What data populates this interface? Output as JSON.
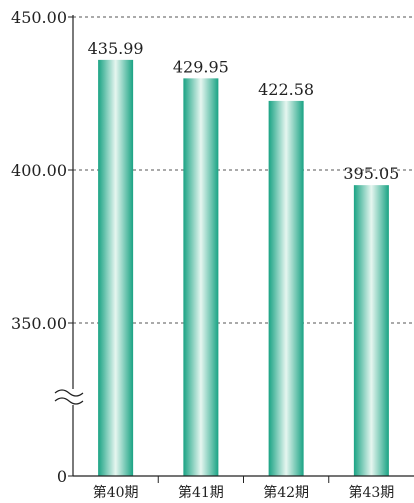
{
  "chart_data": {
    "type": "bar",
    "categories": [
      "第40期",
      "第41期",
      "第42期",
      "第43期"
    ],
    "values": [
      435.99,
      429.95,
      422.58,
      395.05
    ],
    "value_labels": [
      "435.99",
      "429.95",
      "422.58",
      "395.05"
    ],
    "y_ticks": [
      {
        "value": 450,
        "label": "450.00"
      },
      {
        "value": 400,
        "label": "400.00"
      },
      {
        "value": 350,
        "label": "350.00"
      },
      {
        "value": 0,
        "label": "0"
      }
    ],
    "ylim": [
      0,
      450
    ],
    "axis_break": true,
    "grid": "dashed horizontal",
    "colors": {
      "bar_edge": "#1aa384",
      "bar_center": "#e6f6f0",
      "axis": "#222222",
      "grid": "#555555"
    }
  }
}
